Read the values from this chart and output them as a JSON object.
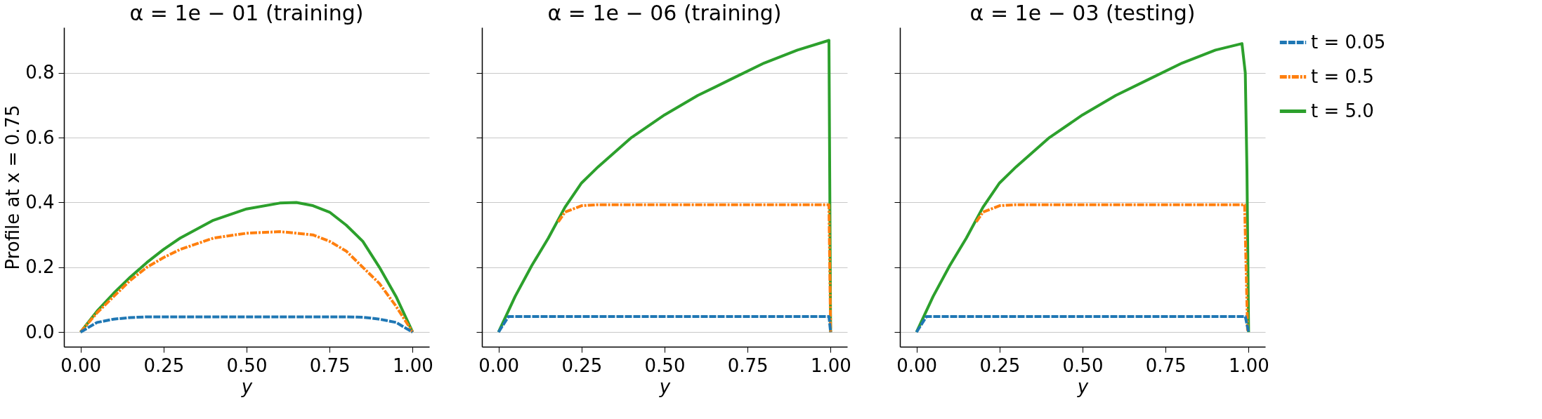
{
  "chart_data": [
    {
      "type": "line",
      "title": "α = 1e − 01 (training)",
      "xlabel": "y",
      "ylabel": "Profile at x = 0.75",
      "xlim": [
        -0.05,
        1.05
      ],
      "ylim": [
        -0.045,
        0.94
      ],
      "xticks": [
        {
          "value": 0,
          "label": "0.00"
        },
        {
          "value": 0.25,
          "label": "0.25"
        },
        {
          "value": 0.5,
          "label": "0.50"
        },
        {
          "value": 0.75,
          "label": "0.75"
        },
        {
          "value": 1,
          "label": "1.00"
        }
      ],
      "yticks": [
        {
          "value": 0,
          "label": "0.0"
        },
        {
          "value": 0.2,
          "label": "0.2"
        },
        {
          "value": 0.4,
          "label": "0.4"
        },
        {
          "value": 0.6,
          "label": "0.6"
        },
        {
          "value": 0.8,
          "label": "0.8"
        }
      ],
      "grid": "y",
      "series": [
        {
          "color": "#1f77b4",
          "line_style": "dashed",
          "x": [
            0,
            0.05,
            0.1,
            0.15,
            0.2,
            0.3,
            0.5,
            0.7,
            0.8,
            0.85,
            0.9,
            0.95,
            1.0
          ],
          "values": [
            0,
            0.03,
            0.04,
            0.045,
            0.047,
            0.047,
            0.047,
            0.047,
            0.047,
            0.046,
            0.04,
            0.03,
            0
          ]
        },
        {
          "color": "#ff7f0e",
          "line_style": "dashdot",
          "x": [
            0,
            0.05,
            0.1,
            0.15,
            0.2,
            0.25,
            0.3,
            0.4,
            0.5,
            0.6,
            0.7,
            0.75,
            0.8,
            0.85,
            0.9,
            0.95,
            1.0
          ],
          "values": [
            0,
            0.06,
            0.11,
            0.16,
            0.2,
            0.23,
            0.255,
            0.29,
            0.305,
            0.31,
            0.3,
            0.28,
            0.25,
            0.2,
            0.15,
            0.08,
            0
          ]
        },
        {
          "color": "#2ca02c",
          "line_style": "solid",
          "x": [
            0,
            0.05,
            0.1,
            0.15,
            0.2,
            0.25,
            0.3,
            0.4,
            0.5,
            0.6,
            0.65,
            0.7,
            0.75,
            0.8,
            0.85,
            0.9,
            0.95,
            1.0
          ],
          "values": [
            0,
            0.065,
            0.12,
            0.17,
            0.215,
            0.255,
            0.29,
            0.345,
            0.38,
            0.398,
            0.4,
            0.39,
            0.37,
            0.33,
            0.28,
            0.2,
            0.11,
            0
          ]
        }
      ]
    },
    {
      "type": "line",
      "title": "α = 1e − 06 (training)",
      "xlabel": "y",
      "xlim": [
        -0.05,
        1.05
      ],
      "ylim": [
        -0.045,
        0.94
      ],
      "xticks": [
        {
          "value": 0,
          "label": "0.00"
        },
        {
          "value": 0.25,
          "label": "0.25"
        },
        {
          "value": 0.5,
          "label": "0.50"
        },
        {
          "value": 0.75,
          "label": "0.75"
        },
        {
          "value": 1,
          "label": "1.00"
        }
      ],
      "yticks": [
        0.0,
        0.2,
        0.4,
        0.6,
        0.8
      ],
      "grid": "y",
      "tick_labels": "x",
      "series": [
        {
          "color": "#1f77b4",
          "line_style": "dashed",
          "x": [
            0,
            0.03,
            0.5,
            0.995,
            1.0
          ],
          "values": [
            0,
            0.048,
            0.048,
            0.048,
            0
          ]
        },
        {
          "color": "#ff7f0e",
          "line_style": "dashdot",
          "x": [
            0.18,
            0.2,
            0.25,
            0.3,
            0.6,
            0.995,
            1.0
          ],
          "values": [
            0.34,
            0.37,
            0.39,
            0.393,
            0.393,
            0.393,
            0
          ]
        },
        {
          "color": "#2ca02c",
          "line_style": "solid",
          "x": [
            0,
            0.05,
            0.1,
            0.15,
            0.2,
            0.25,
            0.3,
            0.4,
            0.5,
            0.6,
            0.7,
            0.8,
            0.9,
            0.995,
            1.0
          ],
          "values": [
            0,
            0.11,
            0.205,
            0.29,
            0.385,
            0.46,
            0.51,
            0.6,
            0.67,
            0.73,
            0.78,
            0.83,
            0.87,
            0.9,
            0
          ]
        }
      ]
    },
    {
      "type": "line",
      "title": "α = 1e − 03 (testing)",
      "xlabel": "y",
      "xlim": [
        -0.05,
        1.05
      ],
      "ylim": [
        -0.045,
        0.94
      ],
      "xticks": [
        {
          "value": 0,
          "label": "0.00"
        },
        {
          "value": 0.25,
          "label": "0.25"
        },
        {
          "value": 0.5,
          "label": "0.50"
        },
        {
          "value": 0.75,
          "label": "0.75"
        },
        {
          "value": 1,
          "label": "1.00"
        }
      ],
      "yticks": [
        0.0,
        0.2,
        0.4,
        0.6,
        0.8
      ],
      "grid": "y",
      "tick_labels": "x",
      "legend": "right",
      "series": [
        {
          "name": "t = 0.05",
          "color": "#1f77b4",
          "line_style": "dashed",
          "x": [
            0,
            0.03,
            0.5,
            0.99,
            1.0
          ],
          "values": [
            0,
            0.048,
            0.048,
            0.048,
            0
          ]
        },
        {
          "name": "t = 0.5",
          "color": "#ff7f0e",
          "line_style": "dashdot",
          "x": [
            0.18,
            0.2,
            0.25,
            0.3,
            0.6,
            0.988,
            0.997
          ],
          "values": [
            0.34,
            0.37,
            0.39,
            0.393,
            0.393,
            0.393,
            0
          ]
        },
        {
          "name": "t = 5.0",
          "color": "#2ca02c",
          "line_style": "solid",
          "x": [
            0,
            0.05,
            0.1,
            0.15,
            0.2,
            0.25,
            0.3,
            0.4,
            0.5,
            0.6,
            0.7,
            0.8,
            0.9,
            0.98,
            0.99,
            0.995,
            1.0
          ],
          "values": [
            0,
            0.11,
            0.205,
            0.29,
            0.385,
            0.46,
            0.51,
            0.6,
            0.67,
            0.73,
            0.78,
            0.83,
            0.87,
            0.89,
            0.8,
            0.5,
            0
          ]
        }
      ]
    }
  ]
}
